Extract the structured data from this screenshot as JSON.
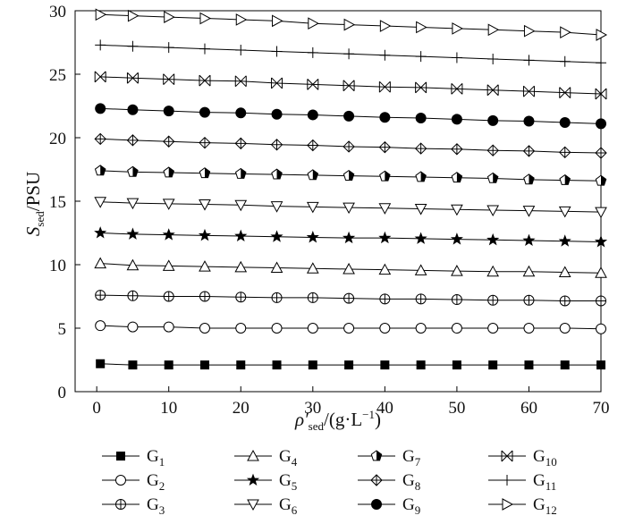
{
  "chart_data": {
    "type": "line",
    "title": "",
    "xlabel": {
      "main": "ρ′",
      "sub": "sed",
      "unit": "/(g·L",
      "sup": "−1",
      "close": ")"
    },
    "ylabel": {
      "main": "S",
      "sub": "sed",
      "unit": "/PSU"
    },
    "xlim": [
      -3,
      70
    ],
    "ylim": [
      0,
      30
    ],
    "xticks": [
      0,
      10,
      20,
      30,
      40,
      50,
      60,
      70
    ],
    "yticks": [
      0,
      5,
      10,
      15,
      20,
      25,
      30
    ],
    "grid": false,
    "legend_position": "bottom",
    "x": [
      0.5,
      5,
      10,
      15,
      20,
      25,
      30,
      35,
      40,
      45,
      50,
      55,
      60,
      65,
      70
    ],
    "series": [
      {
        "name": "G",
        "sub": "1",
        "marker": "square-filled",
        "values": [
          2.2,
          2.1,
          2.1,
          2.1,
          2.1,
          2.1,
          2.1,
          2.1,
          2.1,
          2.1,
          2.1,
          2.1,
          2.1,
          2.1,
          2.1
        ]
      },
      {
        "name": "G",
        "sub": "2",
        "marker": "circle-open",
        "values": [
          5.2,
          5.1,
          5.1,
          5.0,
          5.0,
          5.0,
          5.0,
          5.0,
          5.0,
          5.0,
          5.0,
          5.0,
          5.0,
          5.0,
          4.95
        ]
      },
      {
        "name": "G",
        "sub": "3",
        "marker": "circle-cross",
        "values": [
          7.6,
          7.55,
          7.5,
          7.5,
          7.45,
          7.4,
          7.4,
          7.35,
          7.3,
          7.3,
          7.25,
          7.2,
          7.2,
          7.15,
          7.15
        ]
      },
      {
        "name": "G",
        "sub": "4",
        "marker": "triangle-up",
        "values": [
          10.1,
          9.95,
          9.9,
          9.85,
          9.8,
          9.75,
          9.7,
          9.65,
          9.6,
          9.55,
          9.5,
          9.45,
          9.45,
          9.4,
          9.35
        ]
      },
      {
        "name": "G",
        "sub": "5",
        "marker": "star",
        "values": [
          12.5,
          12.4,
          12.35,
          12.3,
          12.25,
          12.2,
          12.15,
          12.1,
          12.1,
          12.05,
          12.0,
          11.95,
          11.9,
          11.85,
          11.8
        ]
      },
      {
        "name": "G",
        "sub": "6",
        "marker": "triangle-down",
        "values": [
          14.95,
          14.85,
          14.8,
          14.75,
          14.7,
          14.6,
          14.55,
          14.5,
          14.45,
          14.4,
          14.35,
          14.3,
          14.25,
          14.2,
          14.15
        ]
      },
      {
        "name": "G",
        "sub": "7",
        "marker": "pentagon-half",
        "values": [
          17.4,
          17.3,
          17.25,
          17.2,
          17.15,
          17.1,
          17.05,
          17.0,
          16.95,
          16.9,
          16.85,
          16.8,
          16.7,
          16.65,
          16.6
        ]
      },
      {
        "name": "G",
        "sub": "8",
        "marker": "diamond-cross",
        "values": [
          19.9,
          19.8,
          19.7,
          19.6,
          19.55,
          19.45,
          19.4,
          19.3,
          19.25,
          19.15,
          19.1,
          19.0,
          18.95,
          18.85,
          18.8
        ]
      },
      {
        "name": "G",
        "sub": "9",
        "marker": "circle-filled",
        "values": [
          22.3,
          22.2,
          22.1,
          22.0,
          21.95,
          21.85,
          21.8,
          21.7,
          21.6,
          21.55,
          21.45,
          21.35,
          21.3,
          21.2,
          21.1
        ]
      },
      {
        "name": "G",
        "sub": "10",
        "marker": "x-box",
        "values": [
          24.8,
          24.7,
          24.6,
          24.5,
          24.45,
          24.3,
          24.2,
          24.1,
          24.0,
          23.95,
          23.85,
          23.75,
          23.65,
          23.55,
          23.45
        ]
      },
      {
        "name": "G",
        "sub": "11",
        "marker": "plus",
        "values": [
          27.3,
          27.2,
          27.1,
          27.0,
          26.9,
          26.8,
          26.7,
          26.6,
          26.5,
          26.4,
          26.3,
          26.2,
          26.1,
          26.0,
          25.9
        ]
      },
      {
        "name": "G",
        "sub": "12",
        "marker": "triangle-right",
        "values": [
          29.7,
          29.6,
          29.5,
          29.4,
          29.3,
          29.2,
          29.0,
          28.9,
          28.8,
          28.7,
          28.6,
          28.5,
          28.4,
          28.3,
          28.1
        ]
      }
    ]
  }
}
